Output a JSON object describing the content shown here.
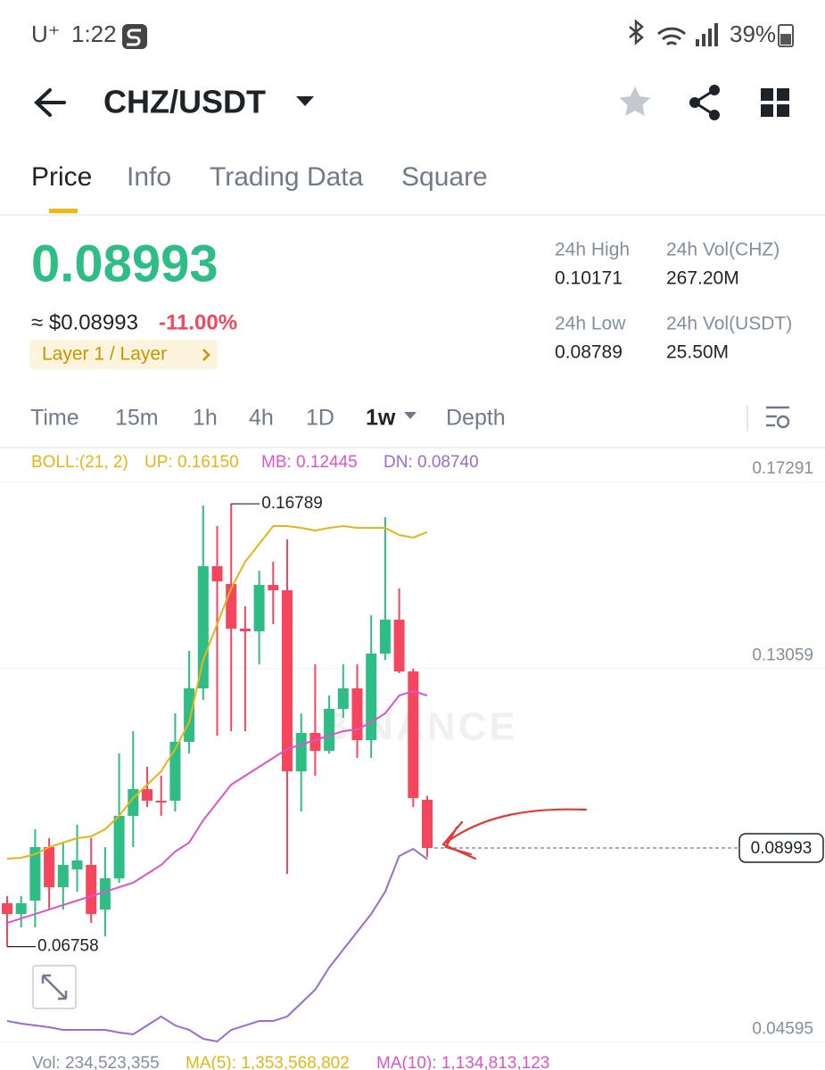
{
  "status_bar": {
    "carrier": "U⁺",
    "time": "1:22",
    "battery": "39%"
  },
  "header": {
    "pair": "CHZ/USDT"
  },
  "tabs": [
    "Price",
    "Info",
    "Trading Data",
    "Square"
  ],
  "price": {
    "last": "0.08993",
    "usd": "≈ $0.08993",
    "change": "-11.00%",
    "tag": "Layer 1 / Layer"
  },
  "stats": [
    {
      "label": "24h High",
      "value": "0.10171"
    },
    {
      "label": "24h Vol(CHZ)",
      "value": "267.20M"
    },
    {
      "label": "24h Low",
      "value": "0.08789"
    },
    {
      "label": "24h Vol(USDT)",
      "value": "25.50M"
    }
  ],
  "intervals": [
    "Time",
    "15m",
    "1h",
    "4h",
    "1D",
    "1w",
    "Depth"
  ],
  "chart_data": {
    "type": "candlestick",
    "indicator": "BOLL:(21, 2)",
    "watermark": "BINANCE",
    "up_color": "#2ebd85",
    "down_color": "#f6465d",
    "open": [
      0.07741,
      0.07498,
      0.07801,
      0.09013,
      0.08104,
      0.08508,
      0.08609,
      0.07599,
      0.08306,
      0.0972,
      0.10326,
      0.10064,
      0.10064,
      0.11397,
      0.12609,
      0.15376,
      0.14972,
      0.13962,
      0.13902,
      0.14952,
      0.14831,
      0.1073,
      0.11599,
      0.11195,
      0.12144,
      0.12609,
      0.11437,
      0.13397,
      0.14164,
      0.12993,
      0.10084
    ],
    "high": [
      0.07902,
      0.07902,
      0.09417,
      0.09215,
      0.09114,
      0.09518,
      0.09215,
      0.09013,
      0.11134,
      0.11639,
      0.10831,
      0.10629,
      0.12043,
      0.13457,
      0.1675,
      0.16285,
      0.16789,
      0.14467,
      0.15275,
      0.15477,
      0.15982,
      0.12043,
      0.13154,
      0.12447,
      0.13154,
      0.13154,
      0.14265,
      0.16487,
      0.14871,
      0.13053,
      0.10171
    ],
    "low": [
      0.06758,
      0.07195,
      0.07195,
      0.07599,
      0.07599,
      0.08003,
      0.07296,
      0.06993,
      0.08205,
      0.09013,
      0.09922,
      0.0972,
      0.09821,
      0.11134,
      0.12346,
      0.11538,
      0.11639,
      0.11639,
      0.13154,
      0.14063,
      0.08407,
      0.09821,
      0.10629,
      0.11134,
      0.11942,
      0.11033,
      0.11033,
      0.13255,
      0.12952,
      0.09922,
      0.08789
    ],
    "close": [
      0.07498,
      0.07741,
      0.09013,
      0.08104,
      0.08609,
      0.0871,
      0.07498,
      0.08306,
      0.0972,
      0.10326,
      0.10064,
      0.10023,
      0.11397,
      0.12609,
      0.15376,
      0.15033,
      0.13962,
      0.13902,
      0.14952,
      0.14831,
      0.1073,
      0.11599,
      0.11195,
      0.12144,
      0.12609,
      0.11437,
      0.13397,
      0.14164,
      0.12993,
      0.10124,
      0.08993
    ],
    "series": [
      {
        "name": "UP: 0.16150",
        "color": "#e6b515",
        "values": [
          0.08751,
          0.08771,
          0.08852,
          0.09013,
          0.09114,
          0.09215,
          0.09256,
          0.09417,
          0.0972,
          0.10124,
          0.10427,
          0.1073,
          0.11235,
          0.11841,
          0.13255,
          0.14063,
          0.14871,
          0.15477,
          0.15881,
          0.16285,
          0.16285,
          0.16245,
          0.16184,
          0.16245,
          0.16285,
          0.16245,
          0.16245,
          0.16245,
          0.16083,
          0.16023,
          0.1615
        ]
      },
      {
        "name": "MB: 0.12445",
        "color": "#dd55c6",
        "values": [
          0.07296,
          0.07397,
          0.07498,
          0.07599,
          0.077,
          0.07801,
          0.07902,
          0.08003,
          0.08104,
          0.08205,
          0.08407,
          0.08609,
          0.08912,
          0.09114,
          0.09619,
          0.10023,
          0.10427,
          0.10629,
          0.10831,
          0.11033,
          0.11235,
          0.11336,
          0.11437,
          0.11538,
          0.11639,
          0.1168,
          0.11841,
          0.12043,
          0.12447,
          0.12548,
          0.12445
        ]
      },
      {
        "name": "DN: 0.08740",
        "color": "#9a6bd2",
        "values": [
          0.05074,
          0.05014,
          0.04973,
          0.04933,
          0.04872,
          0.04872,
          0.04872,
          0.04872,
          0.04812,
          0.04771,
          0.04973,
          0.05175,
          0.04973,
          0.04872,
          0.0467,
          0.0461,
          0.04872,
          0.04973,
          0.05074,
          0.05074,
          0.05175,
          0.05478,
          0.05781,
          0.06286,
          0.0669,
          0.07094,
          0.07498,
          0.08003,
          0.08811,
          0.08973,
          0.0874
        ]
      }
    ],
    "ylim": [
      0.04529,
      0.18002
    ],
    "yticks": [
      0.17291,
      0.13059,
      0.04595
    ],
    "grid": true,
    "last_price": 0.08993,
    "high_marker": 0.16789,
    "low_marker": 0.06758
  },
  "volume_bar": [
    "Vol: 234,523,355",
    "MA(5): 1,353,568,802",
    "MA(10): 1,134,813,123"
  ]
}
